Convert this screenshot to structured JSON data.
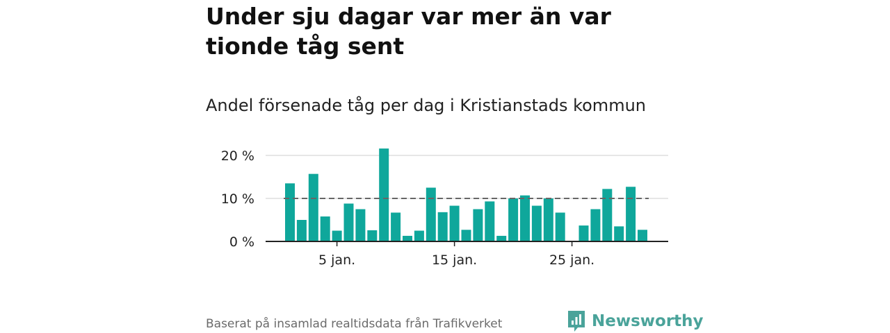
{
  "title": "Under sju dagar var mer än var tionde tåg sent",
  "subtitle": "Andel försenade tåg per dag i Kristianstads kommun",
  "footer": "Baserat på insamlad realtidsdata från Trafikverket",
  "brand": {
    "name": "Newsworthy",
    "icon": "newsworthy-logo-icon"
  },
  "colors": {
    "bar": "#0fa79b",
    "reference_line": "#666666",
    "grid": "#dddddd",
    "brand": "#4aa39a"
  },
  "chart_data": {
    "type": "bar",
    "x": [
      "1 jan.",
      "2 jan.",
      "3 jan.",
      "4 jan.",
      "5 jan.",
      "6 jan.",
      "7 jan.",
      "8 jan.",
      "9 jan.",
      "10 jan.",
      "11 jan.",
      "12 jan.",
      "13 jan.",
      "14 jan.",
      "15 jan.",
      "16 jan.",
      "17 jan.",
      "18 jan.",
      "19 jan.",
      "20 jan.",
      "21 jan.",
      "22 jan.",
      "23 jan.",
      "24 jan.",
      "25 jan.",
      "26 jan.",
      "27 jan.",
      "28 jan.",
      "29 jan.",
      "30 jan.",
      "31 jan."
    ],
    "values": [
      13.5,
      5,
      15.7,
      5.8,
      2.5,
      8.8,
      7.5,
      2.6,
      21.6,
      6.7,
      1.3,
      2.5,
      12.5,
      6.8,
      8.3,
      2.7,
      7.5,
      9.3,
      1.3,
      10,
      10.7,
      8.3,
      10,
      6.7,
      0,
      3.7,
      7.5,
      12.2,
      3.5,
      12.7,
      2.7
    ],
    "reference_line": 10,
    "xticks": [
      "5 jan.",
      "15 jan.",
      "25 jan."
    ],
    "yticks": [
      "0 %",
      "10 %",
      "20 %"
    ],
    "ylim": [
      0,
      20
    ],
    "grid": true
  }
}
